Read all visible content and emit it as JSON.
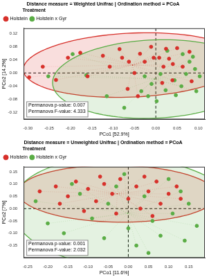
{
  "chart_data": [
    {
      "type": "scatter",
      "title": "Distance measure = Weighted Unifrac | Ordination method = PCoA",
      "x_label": "PCo1 [52.9%]",
      "y_label": "PCo2 [14.2%]",
      "legend": "top left",
      "legend_title": "Treatment",
      "grid": false,
      "annotations": [
        "Permanova p-value: 0.007",
        "Permanova F-value: 4.333"
      ],
      "xlim": [
        -0.31,
        0.115
      ],
      "ylim": [
        -0.14,
        0.135
      ],
      "xticks": [
        {
          "value": -0.3,
          "label": "-0.30"
        },
        -0.25,
        {
          "value": -0.2,
          "label": "-0.20"
        },
        -0.15,
        {
          "value": -0.1,
          "label": "-0.10"
        },
        -0.05,
        {
          "value": 0,
          "label": "0.00"
        },
        0.05,
        {
          "value": 0.1,
          "label": "0.10"
        }
      ],
      "yticks": [
        -0.12,
        -0.08,
        -0.04,
        {
          "value": 0,
          "label": "0.00"
        },
        0.04,
        0.08,
        0.12
      ],
      "series": [
        {
          "name": "Holstein",
          "color": "#d7302a",
          "marker": "circle",
          "x": [
            -0.297,
            -0.265,
            -0.234,
            -0.206,
            -0.177,
            -0.16,
            -0.124,
            -0.108,
            -0.085,
            -0.079,
            -0.063,
            -0.05,
            -0.037,
            -0.026,
            -0.011,
            -0.005,
            0.008,
            0.018,
            0.024,
            0.031,
            0.04,
            0.05,
            0.063,
            0.079,
            -0.066,
            -0.042,
            0.015,
            0.039,
            0.084
          ],
          "values": [
            -0.013,
            0.019,
            -0.021,
            0.046,
            0.061,
            -0.01,
            0.052,
            0.019,
            0.072,
            0.046,
            0.034,
            0.0,
            0.058,
            0.034,
            0.079,
            0.046,
            0.046,
            0.019,
            0.073,
            0.043,
            0.027,
            0.075,
            0.019,
            0.064,
            -0.048,
            -0.07,
            -0.03,
            -0.022,
            -0.025
          ]
        },
        {
          "name": "Holstein x Gyr",
          "color": "#5aad45",
          "marker": "circle",
          "x": [
            -0.252,
            -0.163,
            -0.115,
            -0.074,
            -0.034,
            -0.01,
            0.002,
            0.023,
            0.044,
            0.047,
            0.06,
            0.071,
            0.079,
            0.092,
            0.103,
            0.087,
            0.063,
            0.027,
            0.011,
            -0.026,
            -0.018,
            0.095,
            -0.195
          ],
          "values": [
            -0.01,
            -0.007,
            -0.07,
            -0.105,
            -0.055,
            -0.033,
            -0.085,
            -0.052,
            -0.022,
            -0.067,
            -0.04,
            -0.003,
            0.034,
            0.012,
            -0.01,
            0.049,
            0.057,
            0.067,
            -0.003,
            -0.01,
            -0.07,
            -0.055,
            0.057
          ]
        }
      ]
    },
    {
      "type": "scatter",
      "title": "Distance measure = Unweighted Unifrac | Ordination method = PCoA",
      "x_label": "PCo1 [11.6%]",
      "y_label": "PCo2 [7%]",
      "legend": "top left",
      "legend_title": "Treatment",
      "grid": false,
      "annotations": [
        "Permanova p-value: 0.001",
        "Permanova F-value: 2.032"
      ],
      "xlim": [
        -0.26,
        0.19
      ],
      "ylim": [
        -0.2,
        0.17
      ],
      "xticks": [
        -0.25,
        {
          "value": -0.2,
          "label": "-0.20"
        },
        -0.15,
        {
          "value": -0.1,
          "label": "-0.10"
        },
        -0.05,
        {
          "value": 0,
          "label": "0.00"
        },
        0.05,
        {
          "value": 0.1,
          "label": "0.10"
        },
        0.15
      ],
      "yticks": [
        -0.15,
        {
          "value": -0.1,
          "label": "-0.10"
        },
        -0.05,
        {
          "value": 0,
          "label": "0.00"
        },
        0.05,
        {
          "value": 0.1,
          "label": "0.10"
        },
        0.15
      ],
      "series": [
        {
          "name": "Holstein",
          "color": "#d7302a",
          "marker": "circle",
          "x": [
            -0.22,
            -0.18,
            -0.15,
            -0.13,
            -0.1,
            -0.08,
            -0.06,
            -0.04,
            -0.02,
            0.0,
            0.02,
            0.03,
            0.05,
            0.07,
            0.08,
            0.1,
            0.12,
            0.13,
            -0.11,
            -0.03,
            0.06,
            -0.17,
            0.04,
            -0.07
          ],
          "values": [
            0.07,
            0.09,
            0.05,
            0.11,
            0.08,
            0.03,
            0.1,
            0.06,
            0.12,
            0.04,
            0.09,
            0.0,
            0.07,
            0.11,
            0.02,
            0.06,
            0.09,
            0.04,
            -0.01,
            -0.02,
            -0.03,
            0.02,
            0.13,
            0.13
          ]
        },
        {
          "name": "Holstein x Gyr",
          "color": "#5aad45",
          "marker": "circle",
          "x": [
            -0.23,
            -0.2,
            -0.16,
            -0.12,
            -0.09,
            -0.06,
            -0.03,
            0.0,
            0.02,
            0.04,
            0.06,
            0.08,
            0.1,
            0.11,
            0.13,
            0.15,
            0.17,
            0.14,
            -0.01,
            -0.14,
            0.05,
            -0.05
          ],
          "values": [
            0.03,
            -0.06,
            -0.1,
            0.06,
            -0.04,
            -0.12,
            0.09,
            -0.08,
            -0.15,
            0.05,
            -0.05,
            -0.11,
            0.12,
            -0.02,
            0.07,
            0.02,
            -0.07,
            -0.13,
            0.14,
            0.1,
            -0.18,
            0.02
          ]
        }
      ]
    }
  ]
}
